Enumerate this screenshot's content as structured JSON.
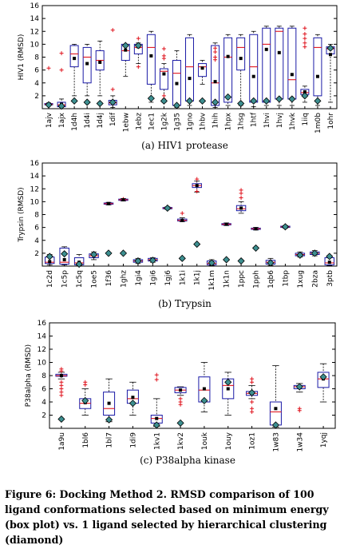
{
  "figure": {
    "caption": "Figure 6: Docking Method 2. RMSD comparison of 100 ligand conformations selected based on minimum energy (box plot) vs. 1 ligand selected by hierarchical clustering (diamond)"
  },
  "chart_data": [
    {
      "type": "box",
      "title": "(a) HIV1 protease",
      "ylabel": "HIV1 (RMSD)",
      "ylim": [
        0,
        16
      ],
      "yticks": [
        2,
        4,
        6,
        8,
        10,
        12,
        14,
        16
      ],
      "categories": [
        "1ajv",
        "1ajx",
        "1d4h",
        "1d4i",
        "1d4j",
        "1dif",
        "1ebw",
        "1ebz",
        "1ec1",
        "1g2k",
        "1g35",
        "1gno",
        "1hbv",
        "1hih",
        "1hpx",
        "1hsg",
        "1htf",
        "1hvi",
        "1hvj",
        "1hvk",
        "1iiq",
        "1m0b",
        "1ohr"
      ],
      "boxes": [
        {
          "label": "1ajv",
          "q1": 0.6,
          "median": 0.7,
          "q3": 0.8,
          "wlo": 0.5,
          "whi": 0.9,
          "mean": 0.7,
          "outliers": [
            6.3
          ],
          "diamond": 0.6
        },
        {
          "label": "1ajx",
          "q1": 0.3,
          "median": 0.6,
          "q3": 1.0,
          "wlo": 0.2,
          "whi": 1.5,
          "mean": 0.7,
          "outliers": [
            8.6,
            6.0
          ],
          "diamond": 0.4
        },
        {
          "label": "1d4h",
          "q1": 6.5,
          "median": 8.5,
          "q3": 9.8,
          "wlo": 2.0,
          "whi": 10.0,
          "mean": 7.8,
          "outliers": [],
          "diamond": 1.2
        },
        {
          "label": "1d4i",
          "q1": 4.0,
          "median": 8.0,
          "q3": 9.5,
          "wlo": 2.0,
          "whi": 10.0,
          "mean": 7.0,
          "outliers": [],
          "diamond": 1.0
        },
        {
          "label": "1d4j",
          "q1": 6.0,
          "median": 7.5,
          "q3": 9.0,
          "wlo": 2.0,
          "whi": 10.5,
          "mean": 7.2,
          "outliers": [],
          "diamond": 0.8
        },
        {
          "label": "1dif",
          "q1": 0.6,
          "median": 0.9,
          "q3": 1.3,
          "wlo": 0.2,
          "whi": 2.0,
          "mean": 0.9,
          "outliers": [
            12.2,
            3.0
          ],
          "diamond": 1.0
        },
        {
          "label": "1ebw",
          "q1": 7.5,
          "median": 9.0,
          "q3": 10.0,
          "wlo": 5.0,
          "whi": 10.0,
          "mean": 9.1,
          "outliers": [],
          "diamond": 9.8
        },
        {
          "label": "1ebz",
          "q1": 8.5,
          "median": 9.5,
          "q3": 10.0,
          "wlo": 7.0,
          "whi": 10.2,
          "mean": 9.6,
          "outliers": [
            10.9,
            6.5
          ],
          "diamond": 9.8
        },
        {
          "label": "1ec1",
          "q1": 3.8,
          "median": 9.5,
          "q3": 11.5,
          "wlo": 1.0,
          "whi": 12.0,
          "mean": 8.2,
          "outliers": [],
          "diamond": 1.6
        },
        {
          "label": "1g2k",
          "q1": 3.0,
          "median": 5.8,
          "q3": 6.2,
          "wlo": 1.0,
          "whi": 7.0,
          "mean": 5.4,
          "outliers": [
            9.3,
            8.2,
            7.8,
            2.0,
            1.5
          ],
          "diamond": 1.2
        },
        {
          "label": "1g35",
          "q1": 0.5,
          "median": 5.5,
          "q3": 7.5,
          "wlo": 0.2,
          "whi": 9.0,
          "mean": 3.9,
          "outliers": [],
          "diamond": 0.5
        },
        {
          "label": "1gno",
          "q1": 1.2,
          "median": 6.5,
          "q3": 11.0,
          "wlo": 0.5,
          "whi": 11.5,
          "mean": 4.7,
          "outliers": [],
          "diamond": 1.2
        },
        {
          "label": "1hbv",
          "q1": 5.0,
          "median": 6.5,
          "q3": 7.0,
          "wlo": 3.8,
          "whi": 7.5,
          "mean": 6.3,
          "outliers": [],
          "diamond": 1.2
        },
        {
          "label": "1hih",
          "q1": 0.5,
          "median": 4.0,
          "q3": 9.8,
          "wlo": 0.2,
          "whi": 10.2,
          "mean": 4.2,
          "outliers": [
            9.4,
            8.8,
            8.0,
            7.6
          ],
          "diamond": 1.0
        },
        {
          "label": "1hpx",
          "q1": 1.0,
          "median": 8.0,
          "q3": 11.0,
          "wlo": 0.5,
          "whi": 11.5,
          "mean": 8.1,
          "outliers": [],
          "diamond": 1.8
        },
        {
          "label": "1hsg",
          "q1": 6.0,
          "median": 9.5,
          "q3": 11.0,
          "wlo": 0.5,
          "whi": 11.5,
          "mean": 7.8,
          "outliers": [],
          "diamond": 0.8
        },
        {
          "label": "1htf",
          "q1": 1.0,
          "median": 6.5,
          "q3": 11.5,
          "wlo": 0.3,
          "whi": 12.0,
          "mean": 5.0,
          "outliers": [],
          "diamond": 1.2
        },
        {
          "label": "1hvi",
          "q1": 1.0,
          "median": 10.0,
          "q3": 12.5,
          "wlo": 0.5,
          "whi": 12.8,
          "mean": 9.2,
          "outliers": [],
          "diamond": 1.2
        },
        {
          "label": "1hvj",
          "q1": 1.5,
          "median": 12.0,
          "q3": 12.5,
          "wlo": 0.5,
          "whi": 12.8,
          "mean": 8.7,
          "outliers": [],
          "diamond": 1.5
        },
        {
          "label": "1hvk",
          "q1": 1.5,
          "median": 4.5,
          "q3": 12.5,
          "wlo": 0.5,
          "whi": 12.8,
          "mean": 5.3,
          "outliers": [],
          "diamond": 1.5
        },
        {
          "label": "1iiq",
          "q1": 2.2,
          "median": 2.5,
          "q3": 3.0,
          "wlo": 1.0,
          "whi": 3.5,
          "mean": 2.6,
          "outliers": [
            12.5,
            11.6,
            10.9,
            10.2,
            9.6
          ],
          "diamond": 2.0
        },
        {
          "label": "1m0b",
          "q1": 2.0,
          "median": 9.5,
          "q3": 11.0,
          "wlo": 0.5,
          "whi": 11.5,
          "mean": 5.0,
          "outliers": [],
          "diamond": 1.2
        },
        {
          "label": "1ohr",
          "q1": 8.5,
          "median": 9.3,
          "q3": 9.6,
          "wlo": 1.0,
          "whi": 10.0,
          "mean": 8.4,
          "outliers": [],
          "diamond": 9.4
        }
      ]
    },
    {
      "type": "box",
      "title": "(b) Trypsin",
      "ylabel": "Trypsin (RMSD)",
      "ylim": [
        0,
        16
      ],
      "yticks": [
        2,
        4,
        6,
        8,
        10,
        12,
        14,
        16
      ],
      "categories": [
        "1c2d",
        "1c5p",
        "1c5q",
        "1oe5",
        "1f36",
        "1ghz",
        "1gi4",
        "1gi6",
        "1gj6",
        "1k1i",
        "1k1j",
        "1k1m",
        "1k1n",
        "1ppc",
        "1pph",
        "1qb6",
        "1tbp",
        "1xug",
        "2bza",
        "3ptb"
      ],
      "boxes": [
        {
          "label": "1c2d",
          "q1": 0.4,
          "median": 0.6,
          "q3": 1.4,
          "wlo": 0.2,
          "whi": 1.8,
          "mean": 0.7,
          "outliers": [],
          "diamond": 1.5
        },
        {
          "label": "1c5p",
          "q1": 0.3,
          "median": 0.6,
          "q3": 2.8,
          "wlo": 0.2,
          "whi": 3.0,
          "mean": 1.0,
          "outliers": [],
          "diamond": 1.9
        },
        {
          "label": "1c5q",
          "q1": 0.2,
          "median": 0.5,
          "q3": 1.3,
          "wlo": 0.1,
          "whi": 1.8,
          "mean": 0.6,
          "outliers": [],
          "diamond": 0.3
        },
        {
          "label": "1oe5",
          "q1": 1.3,
          "median": 1.6,
          "q3": 1.9,
          "wlo": 1.0,
          "whi": 2.2,
          "mean": 1.6,
          "outliers": [],
          "diamond": 1.8
        },
        {
          "label": "1f36",
          "q1": 9.6,
          "median": 9.7,
          "q3": 9.8,
          "wlo": 9.5,
          "whi": 9.9,
          "mean": 9.7,
          "outliers": [],
          "diamond": 2.0
        },
        {
          "label": "1ghz",
          "q1": 10.2,
          "median": 10.3,
          "q3": 10.4,
          "wlo": 10.1,
          "whi": 10.5,
          "mean": 10.3,
          "outliers": [
            10.4
          ],
          "diamond": 2.0
        },
        {
          "label": "1gi4",
          "q1": 0.6,
          "median": 0.8,
          "q3": 1.0,
          "wlo": 0.4,
          "whi": 1.2,
          "mean": 0.8,
          "outliers": [],
          "diamond": 0.8
        },
        {
          "label": "1gi6",
          "q1": 0.8,
          "median": 1.0,
          "q3": 1.2,
          "wlo": 0.6,
          "whi": 1.3,
          "mean": 1.0,
          "outliers": [],
          "diamond": 0.9
        },
        {
          "label": "1gj6",
          "q1": 8.9,
          "median": 9.0,
          "q3": 9.1,
          "wlo": 8.8,
          "whi": 9.2,
          "mean": 9.0,
          "outliers": [],
          "diamond": 9.0
        },
        {
          "label": "1k1i",
          "q1": 7.0,
          "median": 7.1,
          "q3": 7.3,
          "wlo": 6.9,
          "whi": 7.5,
          "mean": 7.1,
          "outliers": [
            8.2
          ],
          "diamond": 1.2
        },
        {
          "label": "1k1j",
          "q1": 12.2,
          "median": 12.5,
          "q3": 12.8,
          "wlo": 11.5,
          "whi": 13.2,
          "mean": 12.5,
          "outliers": [
            13.5,
            11.6
          ],
          "diamond": 3.4
        },
        {
          "label": "1k1m",
          "q1": 0.2,
          "median": 0.4,
          "q3": 0.8,
          "wlo": 0.1,
          "whi": 1.0,
          "mean": 0.4,
          "outliers": [],
          "diamond": 0.5
        },
        {
          "label": "1k1n",
          "q1": 6.4,
          "median": 6.5,
          "q3": 6.6,
          "wlo": 6.3,
          "whi": 6.7,
          "mean": 6.5,
          "outliers": [],
          "diamond": 1.0
        },
        {
          "label": "1ppc",
          "q1": 8.6,
          "median": 8.9,
          "q3": 9.4,
          "wlo": 8.2,
          "whi": 10.0,
          "mean": 9.0,
          "outliers": [
            11.8,
            11.3,
            10.6
          ],
          "diamond": 0.8
        },
        {
          "label": "1pph",
          "q1": 5.7,
          "median": 5.8,
          "q3": 5.9,
          "wlo": 5.6,
          "whi": 6.0,
          "mean": 5.8,
          "outliers": [],
          "diamond": 2.8
        },
        {
          "label": "1qb6",
          "q1": 0.3,
          "median": 0.6,
          "q3": 0.9,
          "wlo": 0.1,
          "whi": 1.2,
          "mean": 0.6,
          "outliers": [],
          "diamond": 0.5
        },
        {
          "label": "1tbp",
          "q1": 6.0,
          "median": 6.1,
          "q3": 6.2,
          "wlo": 5.9,
          "whi": 6.3,
          "mean": 6.1,
          "outliers": [],
          "diamond": 6.1
        },
        {
          "label": "1xug",
          "q1": 1.6,
          "median": 1.8,
          "q3": 2.0,
          "wlo": 1.4,
          "whi": 2.2,
          "mean": 1.8,
          "outliers": [],
          "diamond": 1.7
        },
        {
          "label": "2bza",
          "q1": 1.8,
          "median": 2.0,
          "q3": 2.2,
          "wlo": 1.6,
          "whi": 2.4,
          "mean": 2.0,
          "outliers": [],
          "diamond": 2.0
        },
        {
          "label": "3ptb",
          "q1": 0.2,
          "median": 0.5,
          "q3": 1.3,
          "wlo": 0.1,
          "whi": 1.6,
          "mean": 0.6,
          "outliers": [],
          "diamond": 1.5
        }
      ]
    },
    {
      "type": "box",
      "title": "(c) P38alpha kinase",
      "ylabel": "P38alpha (RMSD)",
      "ylim": [
        0,
        16
      ],
      "yticks": [
        2,
        4,
        6,
        8,
        10,
        12,
        14,
        16
      ],
      "categories": [
        "1a9u",
        "1bl6",
        "1bl7",
        "1di9",
        "1kv1",
        "1kv2",
        "1ouk",
        "1ouy",
        "1oz1",
        "1w83",
        "1w34",
        "1yqj"
      ],
      "boxes": [
        {
          "label": "1a9u",
          "q1": 7.9,
          "median": 8.0,
          "q3": 8.2,
          "wlo": 7.5,
          "whi": 8.5,
          "mean": 8.0,
          "outliers": [
            9.0,
            8.7,
            7.0,
            6.5,
            6.0,
            5.5,
            5.0
          ],
          "diamond": 1.4
        },
        {
          "label": "1bl6",
          "q1": 3.0,
          "median": 3.8,
          "q3": 4.5,
          "wlo": 2.0,
          "whi": 6.0,
          "mean": 3.9,
          "outliers": [
            7.0,
            6.6
          ],
          "diamond": 4.2
        },
        {
          "label": "1bl7",
          "q1": 2.0,
          "median": 3.0,
          "q3": 5.5,
          "wlo": 1.0,
          "whi": 7.5,
          "mean": 3.8,
          "outliers": [],
          "diamond": 1.3
        },
        {
          "label": "1di9",
          "q1": 3.8,
          "median": 4.5,
          "q3": 5.8,
          "wlo": 2.0,
          "whi": 7.0,
          "mean": 4.7,
          "outliers": [],
          "diamond": 3.8
        },
        {
          "label": "1kv1",
          "q1": 0.8,
          "median": 1.5,
          "q3": 2.0,
          "wlo": 0.3,
          "whi": 4.5,
          "mean": 1.5,
          "outliers": [
            8.1,
            7.4
          ],
          "diamond": 0.5
        },
        {
          "label": "1kv2",
          "q1": 5.4,
          "median": 5.8,
          "q3": 6.2,
          "wlo": 5.0,
          "whi": 6.3,
          "mean": 5.8,
          "outliers": [
            4.5,
            4.0,
            3.6
          ],
          "diamond": 0.8
        },
        {
          "label": "1ouk",
          "q1": 4.0,
          "median": 5.8,
          "q3": 7.8,
          "wlo": 2.5,
          "whi": 10.0,
          "mean": 6.0,
          "outliers": [],
          "diamond": 4.2
        },
        {
          "label": "1ouy",
          "q1": 4.5,
          "median": 6.5,
          "q3": 7.5,
          "wlo": 2.0,
          "whi": 8.5,
          "mean": 6.0,
          "outliers": [],
          "diamond": 7.0
        },
        {
          "label": "1oz1",
          "q1": 5.0,
          "median": 5.3,
          "q3": 5.6,
          "wlo": 4.5,
          "whi": 6.5,
          "mean": 5.3,
          "outliers": [
            7.5,
            7.0,
            4.0,
            3.0,
            2.5
          ],
          "diamond": 5.4
        },
        {
          "label": "1w83",
          "q1": 0.5,
          "median": 2.5,
          "q3": 4.0,
          "wlo": 0.2,
          "whi": 9.5,
          "mean": 3.0,
          "outliers": [],
          "diamond": 0.5
        },
        {
          "label": "1w34",
          "q1": 6.0,
          "median": 6.3,
          "q3": 6.5,
          "wlo": 5.5,
          "whi": 6.8,
          "mean": 6.3,
          "outliers": [
            3.0,
            2.7
          ],
          "diamond": 6.3
        },
        {
          "label": "1yqj",
          "q1": 6.2,
          "median": 7.5,
          "q3": 8.5,
          "wlo": 4.0,
          "whi": 9.8,
          "mean": 7.5,
          "outliers": [],
          "diamond": 7.8
        }
      ]
    }
  ],
  "colors": {
    "box_stroke": "#1a1aa6",
    "median": "#e0141e",
    "outlier": "#e0141e",
    "whisker": "#000000",
    "mean": "#000000",
    "diamond_fill": "#3d8f90",
    "diamond_stroke": "#000000",
    "axis": "#000000"
  }
}
